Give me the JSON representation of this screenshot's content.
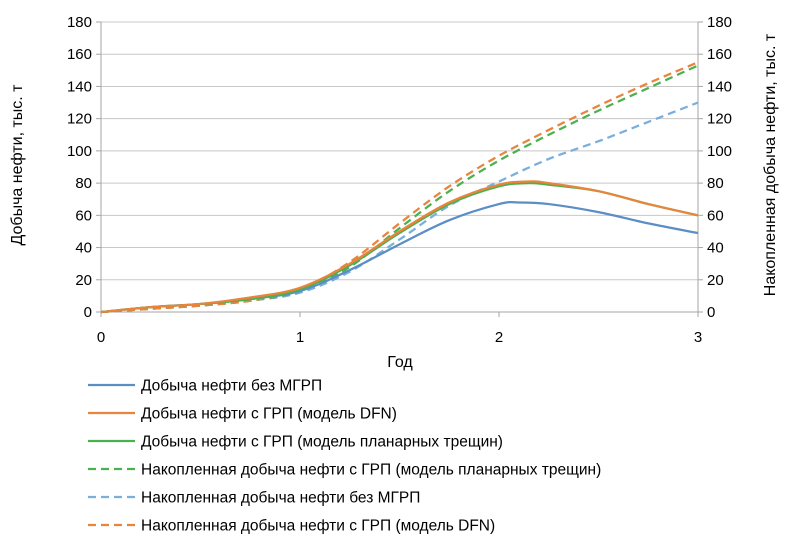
{
  "chart_data": {
    "type": "line",
    "xlabel": "Год",
    "ylabel": "Добыча нефти, тыс. т",
    "y2label": "Накопленная добыча нефти, тыс. т",
    "xlim": [
      0,
      3
    ],
    "ylim": [
      0,
      180
    ],
    "y2lim": [
      0,
      180
    ],
    "xticks": [
      "0",
      "1",
      "2",
      "3"
    ],
    "yticks": [
      "0",
      "20",
      "40",
      "60",
      "80",
      "100",
      "120",
      "140",
      "160",
      "180"
    ],
    "y2ticks": [
      "0",
      "20",
      "40",
      "60",
      "80",
      "100",
      "120",
      "140",
      "160",
      "180"
    ],
    "grid": "horizontal",
    "legend_position": "bottom",
    "series": [
      {
        "name": "Добыча нефти без МГРП",
        "style": "solid",
        "color": "#5b8ec4",
        "axis": "left",
        "x": [
          0,
          0.25,
          0.5,
          0.75,
          1.0,
          1.25,
          1.5,
          1.75,
          2.0,
          2.1,
          2.25,
          2.5,
          2.75,
          3.0
        ],
        "y": [
          0,
          3,
          5,
          8,
          13,
          26,
          42,
          57,
          67,
          68,
          67,
          62,
          55,
          49
        ]
      },
      {
        "name": "Добыча нефти с ГРП (модель DFN)",
        "style": "solid",
        "color": "#e8843c",
        "axis": "left",
        "x": [
          0,
          0.25,
          0.5,
          0.75,
          1.0,
          1.25,
          1.5,
          1.75,
          2.0,
          2.15,
          2.25,
          2.5,
          2.75,
          3.0
        ],
        "y": [
          0,
          3,
          5,
          9,
          15,
          30,
          50,
          68,
          79,
          81,
          80,
          75,
          67,
          60
        ]
      },
      {
        "name": "Добыча нефти с ГРП (модель планарных трещин)",
        "style": "solid",
        "color": "#4cb050",
        "axis": "left",
        "x": [
          0,
          0.25,
          0.5,
          0.75,
          1.0,
          1.25,
          1.5,
          1.75,
          2.0,
          2.15,
          2.25,
          2.5,
          2.75,
          3.0
        ],
        "y": [
          0,
          3,
          5,
          8,
          14,
          29,
          49,
          67,
          78,
          80,
          79,
          75,
          67,
          60
        ]
      },
      {
        "name": "Накопленная добыча нефти с ГРП (модель планарных трещин)",
        "style": "dashed",
        "color": "#4cb050",
        "axis": "right",
        "x": [
          0,
          0.25,
          0.5,
          0.75,
          1.0,
          1.25,
          1.5,
          1.75,
          2.0,
          2.25,
          2.5,
          2.75,
          3.0
        ],
        "y": [
          0,
          2,
          4,
          7,
          13,
          28,
          52,
          75,
          94,
          110,
          125,
          139,
          153
        ]
      },
      {
        "name": "Накопленная добыча нефти без МГРП",
        "style": "dashed",
        "color": "#7aaedb",
        "axis": "right",
        "x": [
          0,
          0.25,
          0.5,
          0.75,
          1.0,
          1.25,
          1.5,
          1.75,
          2.0,
          2.25,
          2.5,
          2.75,
          3.0
        ],
        "y": [
          0,
          2,
          4,
          7,
          12,
          25,
          45,
          66,
          81,
          95,
          106,
          118,
          130
        ]
      },
      {
        "name": "Накопленная добыча нефти с ГРП (модель DFN)",
        "style": "dashed",
        "color": "#e8843c",
        "axis": "right",
        "x": [
          0,
          0.25,
          0.5,
          0.75,
          1.0,
          1.25,
          1.5,
          1.75,
          2.0,
          2.25,
          2.5,
          2.75,
          3.0
        ],
        "y": [
          0,
          2,
          4,
          7,
          14,
          31,
          55,
          78,
          97,
          113,
          128,
          142,
          155
        ]
      }
    ]
  }
}
